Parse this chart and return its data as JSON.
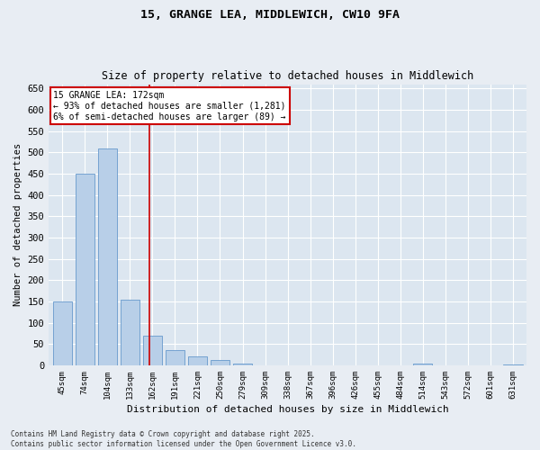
{
  "title_line1": "15, GRANGE LEA, MIDDLEWICH, CW10 9FA",
  "title_line2": "Size of property relative to detached houses in Middlewich",
  "xlabel": "Distribution of detached houses by size in Middlewich",
  "ylabel": "Number of detached properties",
  "bar_labels": [
    "45sqm",
    "74sqm",
    "104sqm",
    "133sqm",
    "162sqm",
    "191sqm",
    "221sqm",
    "250sqm",
    "279sqm",
    "309sqm",
    "338sqm",
    "367sqm",
    "396sqm",
    "426sqm",
    "455sqm",
    "484sqm",
    "514sqm",
    "543sqm",
    "572sqm",
    "601sqm",
    "631sqm"
  ],
  "bar_values": [
    150,
    450,
    510,
    155,
    70,
    35,
    20,
    12,
    5,
    0,
    0,
    0,
    0,
    0,
    0,
    0,
    5,
    0,
    0,
    0,
    3
  ],
  "bar_color": "#b8cfe8",
  "bar_edgecolor": "#6699cc",
  "vline_color": "#cc0000",
  "vline_pos": 3.85,
  "ylim": [
    0,
    660
  ],
  "yticks": [
    0,
    50,
    100,
    150,
    200,
    250,
    300,
    350,
    400,
    450,
    500,
    550,
    600,
    650
  ],
  "annotation_text": "15 GRANGE LEA: 172sqm\n← 93% of detached houses are smaller (1,281)\n6% of semi-detached houses are larger (89) →",
  "annotation_box_facecolor": "#ffffff",
  "annotation_box_edgecolor": "#cc0000",
  "footer_text": "Contains HM Land Registry data © Crown copyright and database right 2025.\nContains public sector information licensed under the Open Government Licence v3.0.",
  "fig_facecolor": "#e8edf3",
  "plot_facecolor": "#dce6f0"
}
